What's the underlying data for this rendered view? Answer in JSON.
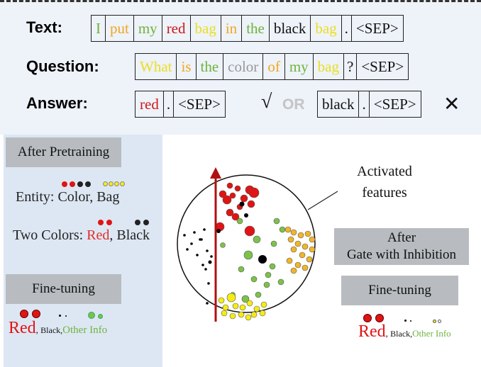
{
  "labels": {
    "text": "Text:",
    "question": "Question:",
    "answer": "Answer:"
  },
  "text_tokens": [
    {
      "t": "I",
      "c": "#6fb33d"
    },
    {
      "t": "put",
      "c": "#f0a81e"
    },
    {
      "t": "my",
      "c": "#6fb33d"
    },
    {
      "t": "red",
      "c": "#cc1a1a"
    },
    {
      "t": "bag",
      "c": "#e8e020"
    },
    {
      "t": "in",
      "c": "#f0a81e"
    },
    {
      "t": "the",
      "c": "#6fb33d"
    },
    {
      "t": "black",
      "c": "#111111"
    },
    {
      "t": "bag",
      "c": "#e8e020"
    },
    {
      "t": ".",
      "c": "#111111"
    },
    {
      "t": "<SEP>",
      "c": "#111111"
    }
  ],
  "question_tokens": [
    {
      "t": "What",
      "c": "#e8e020"
    },
    {
      "t": "is",
      "c": "#f0a81e"
    },
    {
      "t": "the",
      "c": "#6fb33d"
    },
    {
      "t": "color",
      "c": "#999999"
    },
    {
      "t": "of",
      "c": "#f0a81e"
    },
    {
      "t": "my",
      "c": "#6fb33d"
    },
    {
      "t": "bag",
      "c": "#e8e020"
    },
    {
      "t": "?",
      "c": "#111111"
    },
    {
      "t": "<SEP>",
      "c": "#111111"
    }
  ],
  "answer_correct": [
    {
      "t": "red",
      "c": "#cc1a1a"
    },
    {
      "t": ".",
      "c": "#111111"
    },
    {
      "t": "<SEP>",
      "c": "#111111"
    }
  ],
  "answer_wrong": [
    {
      "t": "black",
      "c": "#111111"
    },
    {
      "t": ".",
      "c": "#111111"
    },
    {
      "t": "<SEP>",
      "c": "#111111"
    }
  ],
  "check_mark": "√",
  "or_text": "OR",
  "cross_mark": "✕",
  "left": {
    "after_pretraining": "After Pretraining",
    "entity_line": "Entity: Color, Bag",
    "two_colors_prefix": "Two Colors: ",
    "red": "Red",
    "comma": ", ",
    "black": "Black",
    "finetuning": "Fine-tuning",
    "legend_red": "Red",
    "legend_comma1": ", ",
    "legend_black": "Black",
    "legend_comma2": ",",
    "legend_other": "Other Info"
  },
  "right": {
    "activated_features": "Activated\nfeatures",
    "after_gate": "After\nGate with Inhibition",
    "finetuning": "Fine-tuning",
    "legend_red": "Red",
    "legend_comma1": ", ",
    "legend_black": "Black",
    "legend_comma2": ",",
    "legend_other": "Other Info"
  },
  "colors": {
    "red": "#e01414",
    "black": "#000000",
    "green": "#7cc24a",
    "yellow": "#f5ec14",
    "orange": "#f0b52a"
  }
}
